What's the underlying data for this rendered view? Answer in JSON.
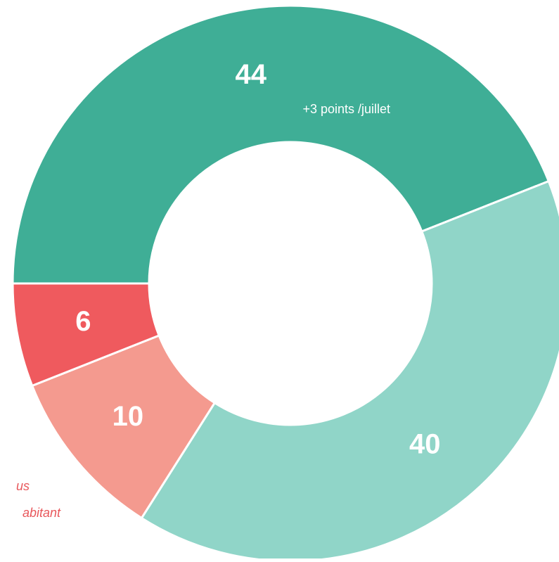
{
  "chart_data": {
    "type": "pie",
    "donut": true,
    "values": [
      44,
      40,
      10,
      6
    ],
    "colors": [
      "#3fae96",
      "#90d5c8",
      "#f49a8f",
      "#ef5a5e"
    ],
    "annotations": [
      "+3 points /juillet",
      "us",
      "abitant"
    ]
  }
}
